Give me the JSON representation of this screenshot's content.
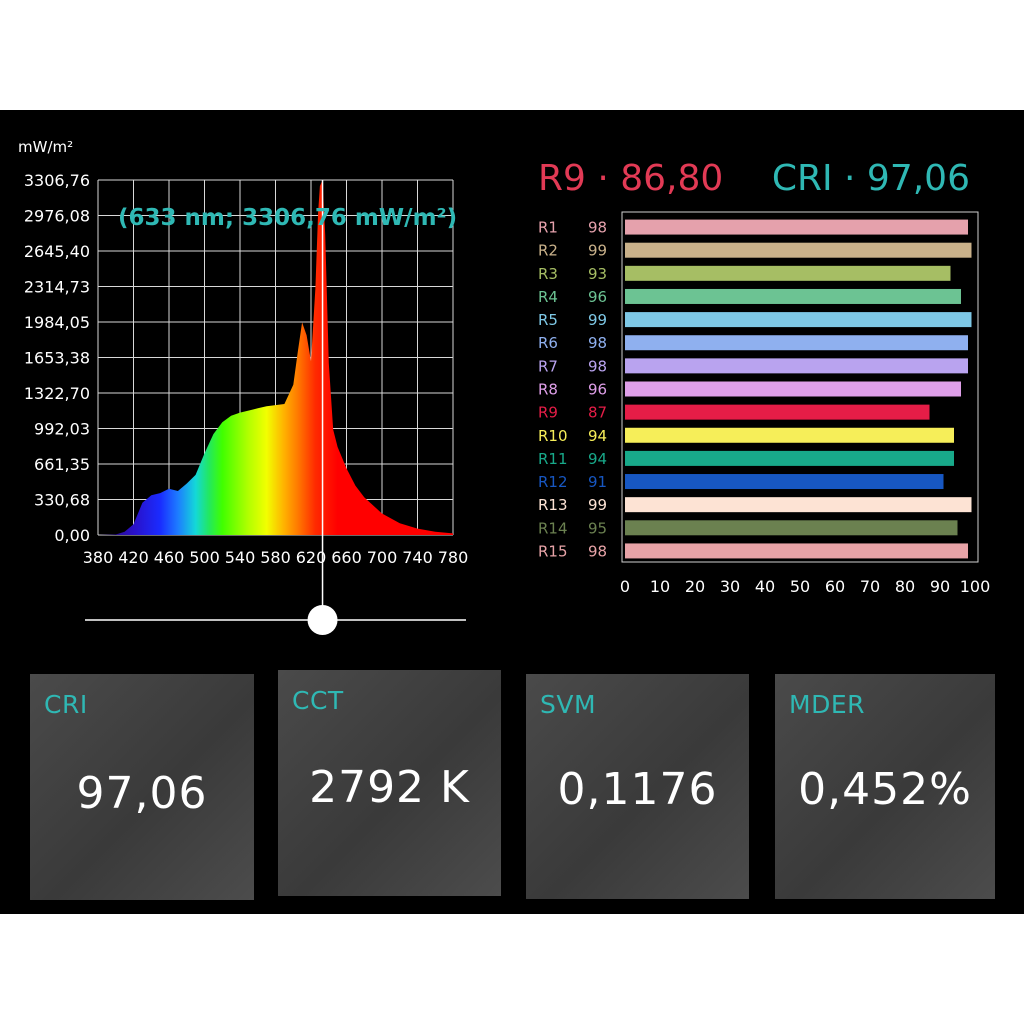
{
  "spectrum": {
    "unit_label": "mW/m²",
    "peak_label": "(633 nm; 3306,76 mW/m²)",
    "y_ticks": [
      "3306,76",
      "2976,08",
      "2645,40",
      "2314,73",
      "1984,05",
      "1653,38",
      "1322,70",
      "992,03",
      "661,35",
      "330,68",
      "0,00"
    ],
    "x_ticks": [
      "380",
      "420",
      "460",
      "500",
      "540",
      "580",
      "620",
      "660",
      "700",
      "740",
      "780"
    ],
    "slider_nm": 633
  },
  "cri_header": {
    "r9_text": "R9 · 86,80",
    "cri_text": "CRI · 97,06"
  },
  "metrics": [
    {
      "label": "CRI",
      "value": "97,06"
    },
    {
      "label": "CCT",
      "value": "2792 K"
    },
    {
      "label": "SVM",
      "value": "0,1176"
    },
    {
      "label": "MDER",
      "value": "0,452%"
    }
  ],
  "chart_data": [
    {
      "type": "area",
      "xlabel": "",
      "ylabel": "mW/m²",
      "xlim": [
        380,
        780
      ],
      "ylim": [
        0,
        3306.76
      ],
      "annotation": "(633 nm; 3306,76 mW/m²)",
      "x": [
        380,
        400,
        410,
        420,
        430,
        440,
        450,
        460,
        470,
        480,
        490,
        500,
        510,
        520,
        530,
        540,
        550,
        560,
        570,
        580,
        590,
        600,
        605,
        610,
        615,
        620,
        625,
        628,
        630,
        633,
        636,
        640,
        645,
        650,
        660,
        670,
        680,
        700,
        720,
        740,
        760,
        780
      ],
      "y": [
        0,
        5,
        30,
        100,
        300,
        370,
        390,
        430,
        410,
        480,
        560,
        760,
        940,
        1050,
        1110,
        1140,
        1160,
        1180,
        1200,
        1210,
        1220,
        1400,
        1700,
        1980,
        1860,
        1620,
        2300,
        3000,
        3250,
        3306.76,
        2800,
        1600,
        980,
        820,
        620,
        460,
        350,
        200,
        110,
        60,
        30,
        15
      ]
    },
    {
      "type": "bar",
      "orientation": "horizontal",
      "categories": [
        "R1",
        "R2",
        "R3",
        "R4",
        "R5",
        "R6",
        "R7",
        "R8",
        "R9",
        "R10",
        "R11",
        "R12",
        "R13",
        "R14",
        "R15"
      ],
      "values": [
        98,
        99,
        93,
        96,
        99,
        98,
        98,
        96,
        87,
        94,
        94,
        91,
        99,
        95,
        98
      ],
      "colors": [
        "#e5a1ac",
        "#c9b18a",
        "#a6be64",
        "#6cc393",
        "#7ec8e6",
        "#8fb0ef",
        "#b9a3ef",
        "#df9fe9",
        "#e51d47",
        "#f6ee59",
        "#18a98a",
        "#1757c2",
        "#fde3d4",
        "#6b8150",
        "#e7a3a7"
      ],
      "xlim": [
        0,
        100
      ],
      "x_ticks": [
        "0",
        "10",
        "20",
        "30",
        "40",
        "50",
        "60",
        "70",
        "80",
        "90",
        "100"
      ],
      "title": "R9 · 86,80   CRI · 97,06"
    }
  ]
}
